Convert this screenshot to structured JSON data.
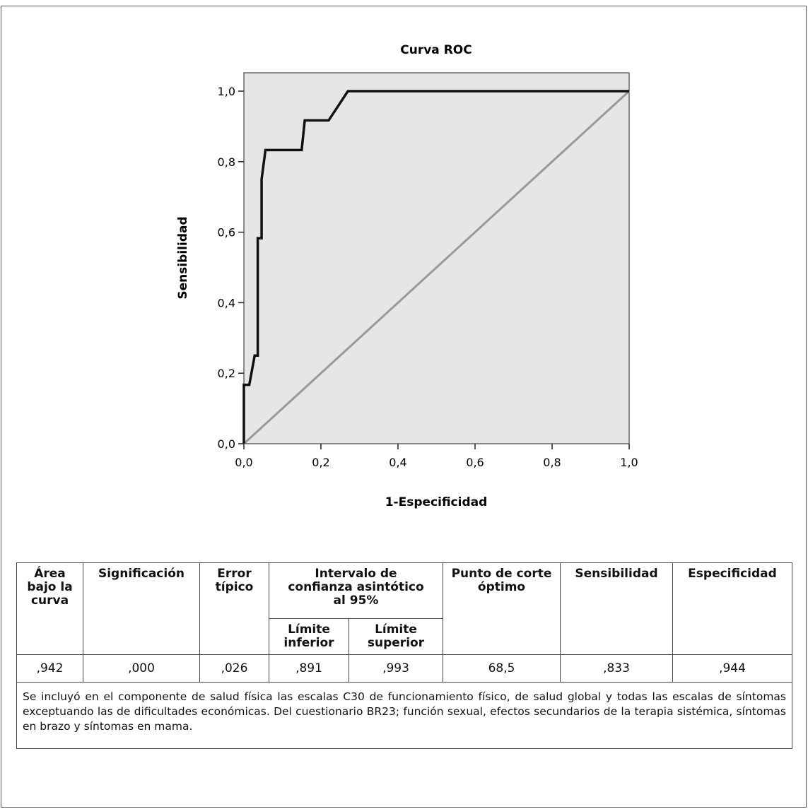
{
  "chart_data": {
    "type": "line",
    "title": "Curva ROC",
    "xlabel": "1-Especificidad",
    "ylabel": "Sensibilidad",
    "xlim": [
      0,
      1
    ],
    "ylim": [
      0,
      1
    ],
    "x_ticks": [
      "0,0",
      "0,2",
      "0,4",
      "0,6",
      "0,8",
      "1,0"
    ],
    "y_ticks": [
      "0,0",
      "0,2",
      "0,4",
      "0,6",
      "0,8",
      "1,0"
    ],
    "grid": false,
    "background_color": "#e6e6e6",
    "series": [
      {
        "color": "#111111",
        "x": [
          0,
          0,
          0.014,
          0.014,
          0.028,
          0.028,
          0.036,
          0.036,
          0.046,
          0.046,
          0.056,
          0.056,
          0.15,
          0.158,
          0.158,
          0.22,
          0.27,
          0.27,
          1.0
        ],
        "y": [
          0,
          0.167,
          0.167,
          0.167,
          0.25,
          0.25,
          0.25,
          0.583,
          0.583,
          0.75,
          0.833,
          0.833,
          0.833,
          0.917,
          0.917,
          0.917,
          1.0,
          1.0,
          1.0
        ]
      },
      {
        "color": "#999999",
        "x": [
          0,
          1
        ],
        "y": [
          0,
          1
        ]
      }
    ]
  },
  "table": {
    "headers": {
      "area": "Área bajo la curva",
      "significance": "Significación",
      "std_error": "Error típico",
      "ci": "Intervalo de confianza asintótico al 95%",
      "ci_lower": "Límite inferior",
      "ci_upper": "Límite superior",
      "cutoff": "Punto de corte óptimo",
      "sensitivity": "Sensibilidad",
      "specificity": "Especificidad"
    },
    "values": {
      "area": ",942",
      "significance": ",000",
      "std_error": ",026",
      "ci_lower": ",891",
      "ci_upper": ",993",
      "cutoff": "68,5",
      "sensitivity": ",833",
      "specificity": ",944"
    },
    "note": "Se incluyó en el componente de salud física las escalas C30 de funcionamiento físico, de salud global y todas las escalas de síntomas exceptuando las de dificultades económicas. Del cuestionario BR23; función sexual, efectos secundarios de la terapia sistémica, síntomas en brazo y síntomas en mama."
  }
}
